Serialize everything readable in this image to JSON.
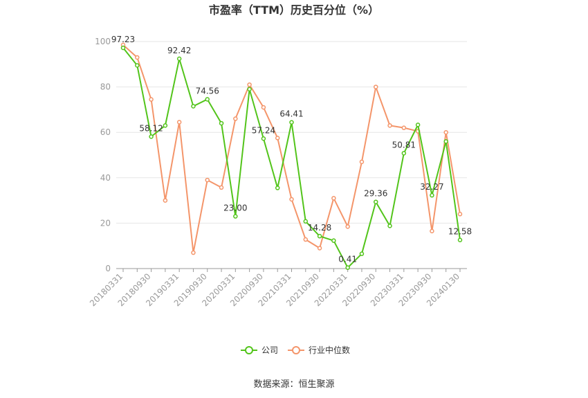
{
  "chart_data": {
    "type": "line",
    "title": "市盈率（TTM）历史百分位（%）",
    "ylim": [
      0,
      100
    ],
    "yticks": [
      0,
      20,
      40,
      60,
      80,
      100
    ],
    "x": [
      "20180331",
      "20180630",
      "20180930",
      "20181231",
      "20190331",
      "20190630",
      "20190930",
      "20191231",
      "20200331",
      "20200630",
      "20200930",
      "20201231",
      "20210331",
      "20210630",
      "20210930",
      "20211231",
      "20220331",
      "20220630",
      "20220930",
      "20221231",
      "20230331",
      "20230630",
      "20230930",
      "20231231",
      "20240130"
    ],
    "xtick_labels": [
      "20180331",
      "20180930",
      "20190331",
      "20190930",
      "20200331",
      "20200930",
      "20210331",
      "20210930",
      "20220331",
      "20220930",
      "20230331",
      "20230930",
      "20240130"
    ],
    "series": [
      {
        "name": "公司",
        "color": "#52c41a",
        "values": [
          97.23,
          89.5,
          58.12,
          63.0,
          92.42,
          71.5,
          74.56,
          64.0,
          23.0,
          79.0,
          57.24,
          35.5,
          64.41,
          20.8,
          14.28,
          12.3,
          0.41,
          6.5,
          29.36,
          18.8,
          50.81,
          63.3,
          32.27,
          56.0,
          12.58
        ],
        "labels": [
          "97.23",
          "",
          "58.12",
          "",
          "92.42",
          "",
          "74.56",
          "",
          "23.00",
          "",
          "57.24",
          "",
          "64.41",
          "",
          "14.28",
          "",
          "0.41",
          "",
          "29.36",
          "",
          "50.81",
          "",
          "32.27",
          "",
          "12.58"
        ]
      },
      {
        "name": "行业中位数",
        "color": "#f4956a",
        "values": [
          98.5,
          93.0,
          74.5,
          30.0,
          64.5,
          7.0,
          39.0,
          35.7,
          66.0,
          81.0,
          71.0,
          57.5,
          30.5,
          12.8,
          9.0,
          31.0,
          18.5,
          47.0,
          80.0,
          63.0,
          62.0,
          60.5,
          16.5,
          60.0,
          24.0
        ]
      }
    ],
    "legend_position": "bottom",
    "grid": true
  },
  "footer": {
    "source": "数据来源：恒生聚源"
  }
}
